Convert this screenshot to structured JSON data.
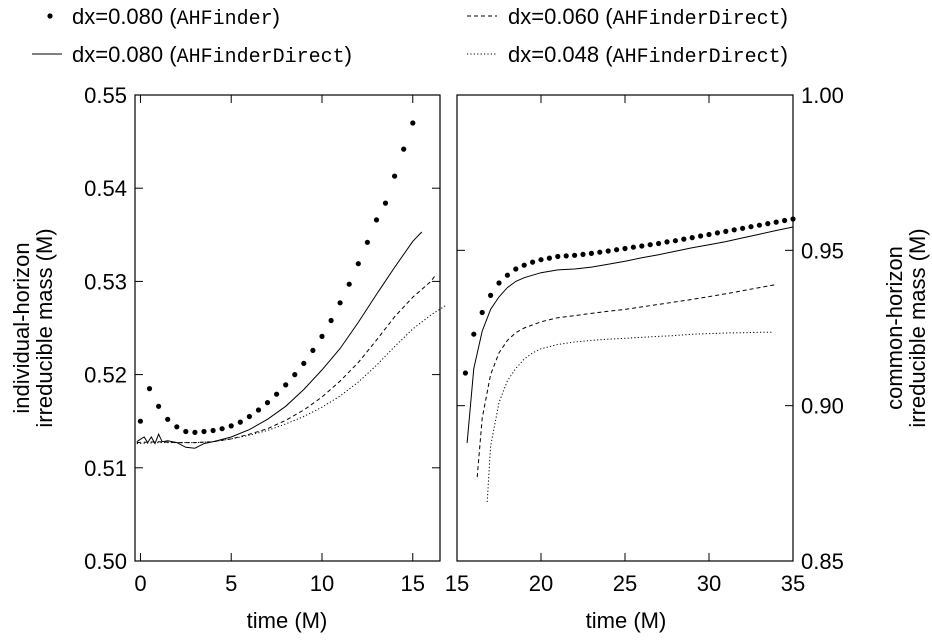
{
  "legend": {
    "items": [
      {
        "prefix": "dx=0.080 (",
        "code": "AHFinder",
        "suffix": ")",
        "style": "dots"
      },
      {
        "prefix": "dx=0.060 (",
        "code": "AHFinderDirect",
        "suffix": ")",
        "style": "dashed"
      },
      {
        "prefix": "dx=0.080 (",
        "code": "AHFinderDirect",
        "suffix": ")",
        "style": "solid"
      },
      {
        "prefix": "dx=0.048 (",
        "code": "AHFinderDirect",
        "suffix": ")",
        "style": "dotted"
      }
    ]
  },
  "colors": {
    "ink": "#000000",
    "background": "#ffffff"
  },
  "chart_data": [
    {
      "type": "line",
      "xlabel": "time (M)",
      "ylabel": [
        "individual-horizon",
        "irreducible mass (M)"
      ],
      "xlim": [
        -0.3,
        16.5
      ],
      "ylim": [
        0.5,
        0.55
      ],
      "xticks": [
        "0",
        "5",
        "10",
        "15"
      ],
      "yticks": [
        "0.50",
        "0.51",
        "0.52",
        "0.53",
        "0.54",
        "0.55"
      ],
      "xtick_values": [
        0,
        5,
        10,
        15
      ],
      "ytick_values": [
        0.5,
        0.51,
        0.52,
        0.53,
        0.54,
        0.55
      ],
      "grid": false,
      "series": [
        {
          "name": "dx=0.080 (AHFinder)",
          "style": "dots",
          "x": [
            0.0,
            0.5,
            1.0,
            1.5,
            2.0,
            2.5,
            3.0,
            3.5,
            4.0,
            4.5,
            5.0,
            5.5,
            6.0,
            6.5,
            7.0,
            7.5,
            8.0,
            8.5,
            9.0,
            9.5,
            10.0,
            10.5,
            11.0,
            11.5,
            12.0,
            12.5,
            13.0,
            13.5,
            14.0,
            14.5,
            15.0
          ],
          "y": [
            0.515,
            0.5185,
            0.5166,
            0.5152,
            0.5144,
            0.5139,
            0.5138,
            0.5139,
            0.514,
            0.5142,
            0.5145,
            0.5149,
            0.5155,
            0.5162,
            0.517,
            0.5179,
            0.5189,
            0.52,
            0.5212,
            0.5226,
            0.5241,
            0.5258,
            0.5277,
            0.5297,
            0.5319,
            0.5342,
            0.5366,
            0.5384,
            0.5413,
            0.5442,
            0.547
          ]
        },
        {
          "name": "dx=0.080 (AHFinderDirect)",
          "style": "solid",
          "x": [
            -0.2,
            0.2,
            0.4,
            0.6,
            0.8,
            1.0,
            1.2,
            1.5,
            2.0,
            2.5,
            3.0,
            3.5,
            4.0,
            5.0,
            6.0,
            7.0,
            8.0,
            9.0,
            10.0,
            11.0,
            12.0,
            13.0,
            14.0,
            15.0,
            15.5
          ],
          "y": [
            0.5128,
            0.5133,
            0.5127,
            0.5133,
            0.5126,
            0.5136,
            0.5128,
            0.5129,
            0.5127,
            0.5122,
            0.5121,
            0.5126,
            0.5128,
            0.5133,
            0.5141,
            0.5152,
            0.5166,
            0.5184,
            0.5205,
            0.5228,
            0.5256,
            0.5286,
            0.5315,
            0.5343,
            0.5353
          ]
        },
        {
          "name": "dx=0.060 (AHFinderDirect)",
          "style": "dashed",
          "x": [
            -0.2,
            1.0,
            2.0,
            3.0,
            4.0,
            5.0,
            6.0,
            7.0,
            8.0,
            9.0,
            10.0,
            11.0,
            12.0,
            13.0,
            14.0,
            15.0,
            16.0,
            16.3
          ],
          "y": [
            0.5127,
            0.5128,
            0.5127,
            0.5127,
            0.5128,
            0.5131,
            0.5136,
            0.5142,
            0.5151,
            0.5162,
            0.5176,
            0.5193,
            0.5213,
            0.5237,
            0.5262,
            0.5283,
            0.53,
            0.5308
          ]
        },
        {
          "name": "dx=0.048 (AHFinderDirect)",
          "style": "dotted",
          "x": [
            -0.2,
            1.0,
            2.0,
            3.0,
            4.0,
            5.0,
            6.0,
            7.0,
            8.0,
            9.0,
            10.0,
            11.0,
            12.0,
            13.0,
            14.0,
            15.0,
            16.0,
            16.8
          ],
          "y": [
            0.5126,
            0.5127,
            0.5127,
            0.5127,
            0.5128,
            0.5131,
            0.5135,
            0.514,
            0.5147,
            0.5155,
            0.5165,
            0.5177,
            0.5192,
            0.521,
            0.523,
            0.5249,
            0.5264,
            0.5274
          ]
        }
      ]
    },
    {
      "type": "line",
      "xlabel": "time (M)",
      "ylabel": [
        "common-horizon",
        "irreducible mass (M)"
      ],
      "xlim": [
        15.0,
        35.0
      ],
      "ylim": [
        0.85,
        1.0
      ],
      "xticks": [
        "15",
        "20",
        "25",
        "30",
        "35"
      ],
      "yticks": [
        "0.85",
        "0.90",
        "0.95",
        "1.00"
      ],
      "xtick_values": [
        15,
        20,
        25,
        30,
        35
      ],
      "ytick_values": [
        0.85,
        0.9,
        0.95,
        1.0
      ],
      "grid": false,
      "series": [
        {
          "name": "dx=0.080 (AHFinder)",
          "style": "dots",
          "x": [
            15.5,
            16.0,
            16.5,
            17.0,
            17.5,
            18.0,
            18.5,
            19.0,
            19.5,
            20.0,
            20.5,
            21.0,
            21.5,
            22.0,
            22.5,
            23.0,
            23.5,
            24.0,
            24.5,
            25.0,
            25.5,
            26.0,
            26.5,
            27.0,
            27.5,
            28.0,
            28.5,
            29.0,
            29.5,
            30.0,
            30.5,
            31.0,
            31.5,
            32.0,
            32.5,
            33.0,
            33.5,
            34.0,
            34.5,
            35.0
          ],
          "y": [
            0.9105,
            0.923,
            0.93,
            0.9355,
            0.9395,
            0.942,
            0.944,
            0.9452,
            0.9462,
            0.947,
            0.9475,
            0.948,
            0.9482,
            0.9484,
            0.9487,
            0.949,
            0.9494,
            0.9498,
            0.9502,
            0.9506,
            0.951,
            0.9514,
            0.9518,
            0.9522,
            0.9527,
            0.9531,
            0.9536,
            0.9541,
            0.9546,
            0.9551,
            0.9556,
            0.9561,
            0.9566,
            0.9571,
            0.9576,
            0.9581,
            0.9586,
            0.9591,
            0.9596,
            0.9601
          ]
        },
        {
          "name": "dx=0.080 (AHFinderDirect)",
          "style": "solid",
          "x": [
            15.6,
            16.0,
            16.5,
            17.0,
            17.5,
            18.0,
            18.5,
            19.0,
            20.0,
            21.0,
            22.0,
            23.0,
            24.0,
            25.0,
            26.0,
            27.0,
            28.0,
            29.0,
            30.0,
            31.0,
            32.0,
            33.0,
            34.0,
            35.0
          ],
          "y": [
            0.888,
            0.912,
            0.924,
            0.931,
            0.935,
            0.938,
            0.94,
            0.9412,
            0.9428,
            0.9437,
            0.944,
            0.9446,
            0.9455,
            0.9465,
            0.9476,
            0.9486,
            0.9497,
            0.9508,
            0.9518,
            0.9528,
            0.954,
            0.9552,
            0.9564,
            0.9575
          ]
        },
        {
          "name": "dx=0.060 (AHFinderDirect)",
          "style": "dashed",
          "x": [
            16.2,
            16.5,
            17.0,
            17.5,
            18.0,
            18.5,
            19.0,
            20.0,
            21.0,
            22.0,
            23.0,
            24.0,
            25.0,
            26.0,
            27.0,
            28.0,
            29.0,
            30.0,
            31.0,
            32.0,
            33.0,
            34.0
          ],
          "y": [
            0.877,
            0.896,
            0.91,
            0.917,
            0.921,
            0.9235,
            0.925,
            0.927,
            0.9283,
            0.929,
            0.9297,
            0.9304,
            0.931,
            0.9318,
            0.9326,
            0.9334,
            0.9342,
            0.9351,
            0.936,
            0.937,
            0.938,
            0.939
          ]
        },
        {
          "name": "dx=0.048 (AHFinderDirect)",
          "style": "dotted",
          "x": [
            16.8,
            17.0,
            17.5,
            18.0,
            18.5,
            19.0,
            19.5,
            20.0,
            21.0,
            22.0,
            23.0,
            24.0,
            25.0,
            26.0,
            27.0,
            28.0,
            29.0,
            30.0,
            31.0,
            32.0,
            33.0,
            33.8
          ],
          "y": [
            0.869,
            0.887,
            0.901,
            0.908,
            0.912,
            0.915,
            0.917,
            0.9183,
            0.9197,
            0.9205,
            0.921,
            0.9214,
            0.9217,
            0.922,
            0.9223,
            0.9226,
            0.923,
            0.9232,
            0.9234,
            0.9235,
            0.9236,
            0.9236
          ]
        }
      ]
    }
  ]
}
